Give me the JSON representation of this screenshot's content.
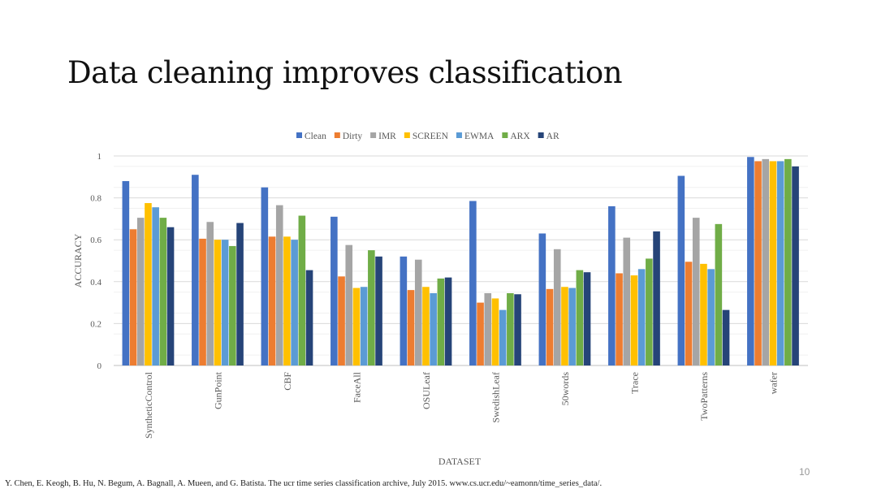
{
  "slide": {
    "title": "Data cleaning improves classification",
    "page_number": "10",
    "citation": "Y. Chen, E. Keogh, B. Hu, N. Begum, A. Bagnall, A. Mueen, and G. Batista. The ucr time series classification archive, July 2015. www.cs.ucr.edu/~eamonn/time_series_data/."
  },
  "chart_data": {
    "type": "bar",
    "title": "",
    "xlabel": "DATASET",
    "ylabel": "ACCURACY",
    "ylim": [
      0,
      1
    ],
    "yticks": [
      "0",
      "0.2",
      "0.4",
      "0.6",
      "0.8",
      "1"
    ],
    "grid": true,
    "legend_position": "top",
    "categories": [
      "SyntheticControl",
      "GunPoint",
      "CBF",
      "FaceAll",
      "OSULeaf",
      "SwedishLeaf",
      "50words",
      "Trace",
      "TwoPatterns",
      "wafer"
    ],
    "series": [
      {
        "name": "Clean",
        "color": "#4472c4",
        "values": [
          0.88,
          0.91,
          0.85,
          0.71,
          0.52,
          0.785,
          0.63,
          0.76,
          0.905,
          0.995
        ]
      },
      {
        "name": "Dirty",
        "color": "#ed7d31",
        "values": [
          0.65,
          0.605,
          0.615,
          0.425,
          0.36,
          0.3,
          0.365,
          0.44,
          0.495,
          0.975
        ]
      },
      {
        "name": "IMR",
        "color": "#a5a5a5",
        "values": [
          0.705,
          0.685,
          0.765,
          0.575,
          0.505,
          0.345,
          0.555,
          0.61,
          0.705,
          0.985
        ]
      },
      {
        "name": "SCREEN",
        "color": "#ffc000",
        "values": [
          0.775,
          0.6,
          0.615,
          0.37,
          0.375,
          0.32,
          0.375,
          0.43,
          0.485,
          0.975
        ]
      },
      {
        "name": "EWMA",
        "color": "#5b9bd5",
        "values": [
          0.755,
          0.6,
          0.6,
          0.375,
          0.345,
          0.265,
          0.37,
          0.46,
          0.46,
          0.975
        ]
      },
      {
        "name": "ARX",
        "color": "#70ad47",
        "values": [
          0.705,
          0.57,
          0.715,
          0.55,
          0.415,
          0.345,
          0.455,
          0.51,
          0.675,
          0.985
        ]
      },
      {
        "name": "AR",
        "color": "#264478",
        "values": [
          0.66,
          0.68,
          0.455,
          0.52,
          0.42,
          0.34,
          0.445,
          0.64,
          0.265,
          0.95
        ]
      }
    ]
  }
}
